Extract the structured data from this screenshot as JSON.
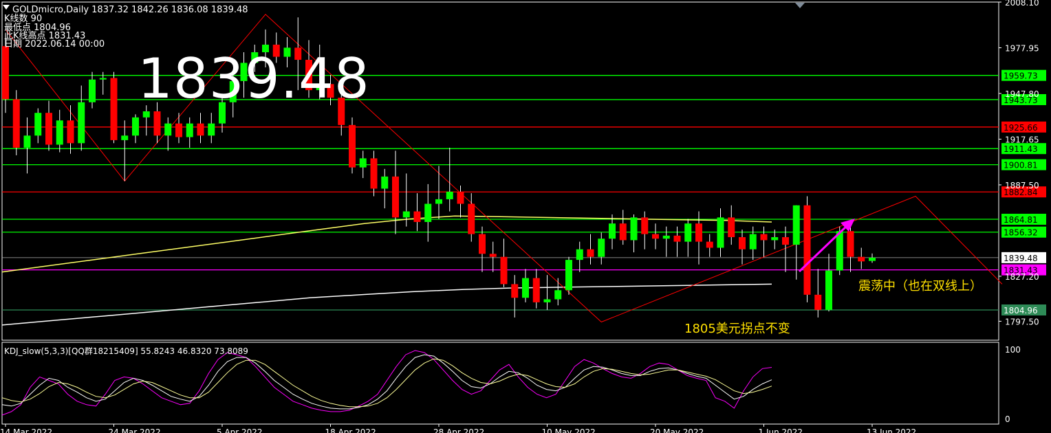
{
  "header": {
    "symbol_line": "GOLDmicro,Daily  1837.32 1842.26 1836.08 1839.48",
    "line2": "K线数  90",
    "line3": "最低点 1804.96",
    "line4": "此K线高点 1831.43",
    "line5": "日期 2022.06.14 00:00"
  },
  "big_price": "1839.48",
  "annotations": {
    "note1": "震荡中（也在双线上）",
    "note2": "1805美元拐点不变"
  },
  "colors": {
    "background": "#000000",
    "bull": "#00ff00",
    "bear": "#ff0000",
    "green_line": "#00ff00",
    "red_line": "#ff0000",
    "magenta": "#ff00ff",
    "ma_yellow": "#ffff66",
    "ma_white": "#ffffff",
    "zigzag": "#ff0000"
  },
  "chart_data": [
    {
      "type": "candlestick",
      "title": "GOLDmicro,Daily",
      "ylim": [
        1785,
        2008.1
      ],
      "y_ticks": [
        "2008.10",
        "1977.95",
        "1947.80",
        "1917.65",
        "1887.50",
        "1827.20",
        "1797.50"
      ],
      "x_ticks": [
        "14 Mar 2022",
        "24 Mar 2022",
        "5 Apr 2022",
        "18 Apr 2022",
        "28 Apr 2022",
        "10 May 2022",
        "20 May 2022",
        "1 Jun 2022",
        "13 Jun 2022"
      ],
      "x_tick_index": [
        0,
        10,
        20,
        30,
        40,
        50,
        60,
        70,
        80
      ],
      "current_price": "1839.48",
      "horizontal_levels": [
        {
          "value": 1959.73,
          "label": "1959.73",
          "color": "green"
        },
        {
          "value": 1943.73,
          "label": "1943.73",
          "color": "green"
        },
        {
          "value": 1925.66,
          "label": "1925.66",
          "color": "red"
        },
        {
          "value": 1911.43,
          "label": "1911.43",
          "color": "green"
        },
        {
          "value": 1900.81,
          "label": "1900.81",
          "color": "green"
        },
        {
          "value": 1882.84,
          "label": "1882.84",
          "color": "red"
        },
        {
          "value": 1864.81,
          "label": "1864.81",
          "color": "green"
        },
        {
          "value": 1856.32,
          "label": "1856.32",
          "color": "green"
        },
        {
          "value": 1831.43,
          "label": "1831.43",
          "color": "magenta"
        },
        {
          "value": 1804.96,
          "label": "1804.96",
          "color": "dark-green"
        }
      ],
      "candles": [
        [
          1979,
          1987,
          1935,
          1944
        ],
        [
          1944,
          1950,
          1907,
          1912
        ],
        [
          1912,
          1932,
          1895,
          1920
        ],
        [
          1920,
          1938,
          1915,
          1935
        ],
        [
          1935,
          1943,
          1910,
          1914
        ],
        [
          1914,
          1937,
          1909,
          1930
        ],
        [
          1930,
          1940,
          1908,
          1915
        ],
        [
          1915,
          1953,
          1910,
          1942
        ],
        [
          1942,
          1962,
          1938,
          1957
        ],
        [
          1957,
          1962,
          1947,
          1958
        ],
        [
          1958,
          1962,
          1915,
          1917
        ],
        [
          1917,
          1930,
          1890,
          1920
        ],
        [
          1920,
          1934,
          1915,
          1932
        ],
        [
          1932,
          1940,
          1920,
          1936
        ],
        [
          1936,
          1942,
          1915,
          1920
        ],
        [
          1920,
          1932,
          1910,
          1928
        ],
        [
          1928,
          1935,
          1915,
          1919
        ],
        [
          1919,
          1932,
          1912,
          1928
        ],
        [
          1928,
          1935,
          1915,
          1920
        ],
        [
          1920,
          1935,
          1915,
          1928
        ],
        [
          1928,
          1945,
          1922,
          1942
        ],
        [
          1942,
          1960,
          1932,
          1956
        ],
        [
          1956,
          1975,
          1945,
          1968
        ],
        [
          1968,
          1980,
          1962,
          1975
        ],
        [
          1975,
          1990,
          1965,
          1980
        ],
        [
          1980,
          1988,
          1968,
          1972
        ],
        [
          1972,
          1985,
          1965,
          1978
        ],
        [
          1978,
          1998,
          1950,
          1970
        ],
        [
          1970,
          1983,
          1945,
          1950
        ],
        [
          1950,
          1980,
          1944,
          1954
        ],
        [
          1954,
          1960,
          1940,
          1945
        ],
        [
          1945,
          1952,
          1920,
          1927
        ],
        [
          1927,
          1932,
          1895,
          1899
        ],
        [
          1899,
          1910,
          1892,
          1905
        ],
        [
          1905,
          1910,
          1880,
          1885
        ],
        [
          1885,
          1898,
          1872,
          1893
        ],
        [
          1893,
          1910,
          1855,
          1866
        ],
        [
          1866,
          1895,
          1860,
          1870
        ],
        [
          1870,
          1882,
          1857,
          1863
        ],
        [
          1863,
          1888,
          1850,
          1875
        ],
        [
          1875,
          1900,
          1865,
          1878
        ],
        [
          1878,
          1912,
          1870,
          1883
        ],
        [
          1883,
          1887,
          1866,
          1875
        ],
        [
          1875,
          1882,
          1850,
          1855
        ],
        [
          1855,
          1860,
          1830,
          1842
        ],
        [
          1842,
          1850,
          1830,
          1840
        ],
        [
          1840,
          1852,
          1820,
          1822
        ],
        [
          1822,
          1828,
          1800,
          1813
        ],
        [
          1813,
          1832,
          1810,
          1826
        ],
        [
          1826,
          1832,
          1806,
          1810
        ],
        [
          1810,
          1828,
          1805,
          1812
        ],
        [
          1812,
          1826,
          1808,
          1818
        ],
        [
          1818,
          1840,
          1815,
          1838
        ],
        [
          1838,
          1850,
          1830,
          1845
        ],
        [
          1845,
          1855,
          1835,
          1840
        ],
        [
          1840,
          1856,
          1835,
          1852
        ],
        [
          1852,
          1868,
          1845,
          1862
        ],
        [
          1862,
          1871,
          1848,
          1851
        ],
        [
          1851,
          1868,
          1843,
          1866
        ],
        [
          1866,
          1870,
          1845,
          1855
        ],
        [
          1855,
          1862,
          1845,
          1852
        ],
        [
          1852,
          1860,
          1840,
          1854
        ],
        [
          1854,
          1860,
          1840,
          1850
        ],
        [
          1850,
          1865,
          1840,
          1862
        ],
        [
          1862,
          1870,
          1835,
          1850
        ],
        [
          1850,
          1855,
          1840,
          1846
        ],
        [
          1846,
          1872,
          1840,
          1866
        ],
        [
          1866,
          1874,
          1848,
          1853
        ],
        [
          1853,
          1858,
          1835,
          1845
        ],
        [
          1845,
          1860,
          1838,
          1855
        ],
        [
          1855,
          1860,
          1840,
          1851
        ],
        [
          1851,
          1858,
          1845,
          1853
        ],
        [
          1853,
          1860,
          1830,
          1848
        ],
        [
          1848,
          1874,
          1825,
          1874
        ],
        [
          1874,
          1880,
          1810,
          1815
        ],
        [
          1815,
          1832,
          1800,
          1805
        ],
        [
          1805,
          1842,
          1804,
          1831
        ],
        [
          1831,
          1860,
          1828,
          1857
        ],
        [
          1857,
          1862,
          1830,
          1840
        ],
        [
          1840,
          1846,
          1832,
          1837
        ],
        [
          1837.32,
          1842.26,
          1836.08,
          1839.48
        ]
      ],
      "ma_yellow": [
        1830,
        1834,
        1838,
        1842,
        1846,
        1850,
        1854,
        1858,
        1862,
        1865,
        1867,
        1866.5,
        1866,
        1865.5,
        1865,
        1864.5,
        1864,
        1863
      ],
      "ma_white": [
        1795,
        1798,
        1801,
        1804,
        1807,
        1810,
        1813,
        1815,
        1817,
        1818.5,
        1819.5,
        1820,
        1820.5,
        1821,
        1821.5,
        1822
      ],
      "zigzag": [
        [
          0,
          1990
        ],
        [
          11,
          1890
        ],
        [
          24,
          2000
        ],
        [
          55,
          1797
        ],
        [
          84,
          1880
        ],
        [
          92,
          1822
        ]
      ],
      "arrow_note": "震荡中（也在双线上）"
    },
    {
      "type": "line",
      "title": "KDJ_slow(5,3,3)[QQ群18215409] 55.8243 46.8320 73.8089",
      "ylim": [
        0,
        100
      ],
      "y_ticks": [
        "100",
        "0"
      ],
      "series": [
        {
          "color": "#ff00ff",
          "values": [
            5,
            10,
            20,
            45,
            60,
            55,
            50,
            35,
            25,
            20,
            18,
            35,
            55,
            60,
            58,
            50,
            40,
            30,
            25,
            20,
            22,
            40,
            65,
            85,
            95,
            92,
            88,
            75,
            60,
            45,
            35,
            25,
            20,
            15,
            12,
            10,
            10,
            12,
            18,
            25,
            35,
            55,
            75,
            92,
            98,
            95,
            85,
            70,
            55,
            42,
            35,
            40,
            55,
            70,
            78,
            60,
            45,
            35,
            30,
            35,
            55,
            75,
            85,
            80,
            72,
            65,
            60,
            58,
            65,
            75,
            80,
            78,
            70,
            62,
            58,
            55,
            30,
            25,
            15,
            40,
            60,
            72,
            73.8
          ]
        },
        {
          "color": "#ffffff",
          "values": [
            20,
            18,
            22,
            35,
            48,
            58,
            55,
            45,
            38,
            30,
            25,
            28,
            40,
            52,
            58,
            55,
            48,
            40,
            32,
            28,
            25,
            32,
            48,
            68,
            82,
            88,
            88,
            80,
            68,
            55,
            45,
            35,
            28,
            22,
            18,
            15,
            14,
            14,
            16,
            20,
            28,
            40,
            58,
            75,
            88,
            92,
            90,
            80,
            68,
            55,
            46,
            44,
            50,
            60,
            68,
            66,
            58,
            48,
            42,
            40,
            45,
            58,
            70,
            75,
            74,
            70,
            65,
            62,
            62,
            68,
            72,
            73,
            70,
            65,
            61,
            58,
            48,
            38,
            28,
            32,
            42,
            50,
            55.8
          ]
        },
        {
          "color": "#ffff99",
          "values": [
            30,
            26,
            24,
            28,
            36,
            46,
            52,
            50,
            45,
            38,
            32,
            30,
            34,
            42,
            50,
            54,
            52,
            46,
            40,
            34,
            30,
            30,
            38,
            52,
            66,
            78,
            84,
            84,
            78,
            68,
            58,
            48,
            40,
            32,
            26,
            22,
            19,
            17,
            17,
            18,
            22,
            30,
            42,
            56,
            70,
            80,
            86,
            84,
            76,
            66,
            58,
            52,
            50,
            54,
            60,
            64,
            62,
            56,
            50,
            46,
            45,
            50,
            60,
            68,
            72,
            71,
            68,
            65,
            63,
            64,
            67,
            70,
            70,
            67,
            64,
            61,
            56,
            48,
            40,
            36,
            38,
            42,
            46.8
          ]
        }
      ]
    }
  ]
}
